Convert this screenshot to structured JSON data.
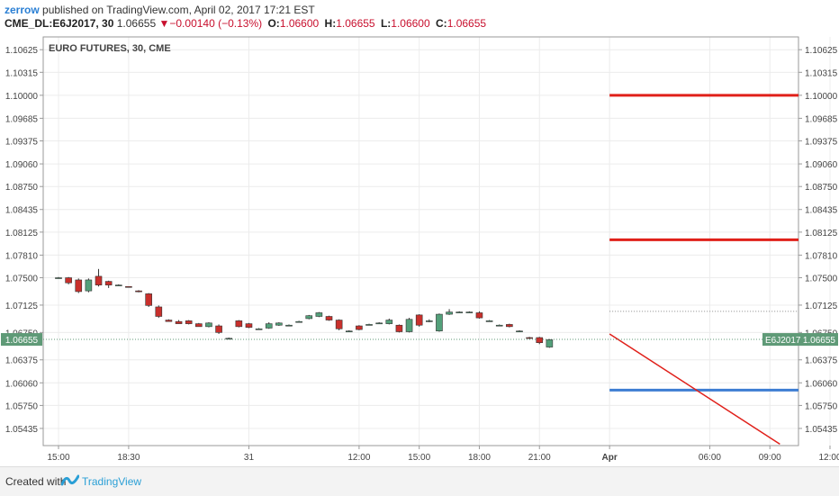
{
  "header": {
    "user": "zerrow",
    "published_text": "published on TradingView.com, April 02, 2017 17:21 EST",
    "symbol_line": "CME_DL:E6J2017, 30",
    "last": "1.06655",
    "change": "−0.00140 (−0.13%)",
    "open_label": "O:",
    "open": "1.06600",
    "high_label": "H:",
    "high": "1.06655",
    "low_label": "L:",
    "low": "1.06600",
    "close_label": "C:",
    "close": "1.06655"
  },
  "footer": {
    "created_with": "Created with",
    "brand": "TradingView"
  },
  "colors": {
    "up": "#53a07a",
    "down": "#c9302c",
    "level_red": "#e0201a",
    "level_blue": "#3d7dd2",
    "price_tag": "#5f9a77"
  },
  "chart_data": {
    "type": "candlestick",
    "title": "EURO FUTURES, 30, CME",
    "ylim": [
      1.052,
      1.108
    ],
    "y_ticks": [
      "1.10625",
      "1.10315",
      "1.10000",
      "1.09685",
      "1.09375",
      "1.09060",
      "1.08750",
      "1.08435",
      "1.08125",
      "1.07810",
      "1.07500",
      "1.07125",
      "1.06750",
      "1.06375",
      "1.06060",
      "1.05750",
      "1.05435"
    ],
    "x_ticks": [
      {
        "label": "15:00",
        "bar": 0
      },
      {
        "label": "18:30",
        "bar": 7
      },
      {
        "label": "31",
        "bar": 19
      },
      {
        "label": "12:00",
        "bar": 30
      },
      {
        "label": "15:00",
        "bar": 36
      },
      {
        "label": "18:00",
        "bar": 42
      },
      {
        "label": "21:00",
        "bar": 48
      },
      {
        "label": "Apr",
        "bar": 55
      },
      {
        "label": "06:00",
        "bar": 65
      },
      {
        "label": "09:00",
        "bar": 71
      },
      {
        "label": "12:00",
        "bar": 77
      }
    ],
    "candles": [
      {
        "o": 1.075,
        "h": 1.0751,
        "l": 1.0749,
        "c": 1.075
      },
      {
        "o": 1.075,
        "h": 1.0751,
        "l": 1.0741,
        "c": 1.0743
      },
      {
        "o": 1.0747,
        "h": 1.0749,
        "l": 1.0729,
        "c": 1.0731
      },
      {
        "o": 1.0732,
        "h": 1.0749,
        "l": 1.073,
        "c": 1.0747
      },
      {
        "o": 1.0752,
        "h": 1.0762,
        "l": 1.0738,
        "c": 1.074
      },
      {
        "o": 1.0745,
        "h": 1.0746,
        "l": 1.0736,
        "c": 1.074
      },
      {
        "o": 1.074,
        "h": 1.0741,
        "l": 1.0739,
        "c": 1.074
      },
      {
        "o": 1.0738,
        "h": 1.0738,
        "l": 1.0737,
        "c": 1.0737
      },
      {
        "o": 1.0732,
        "h": 1.0733,
        "l": 1.073,
        "c": 1.0731
      },
      {
        "o": 1.0728,
        "h": 1.0729,
        "l": 1.071,
        "c": 1.0712
      },
      {
        "o": 1.071,
        "h": 1.0712,
        "l": 1.0695,
        "c": 1.0697
      },
      {
        "o": 1.0692,
        "h": 1.0693,
        "l": 1.069,
        "c": 1.069
      },
      {
        "o": 1.069,
        "h": 1.0692,
        "l": 1.0687,
        "c": 1.0687
      },
      {
        "o": 1.0691,
        "h": 1.0692,
        "l": 1.0686,
        "c": 1.0687
      },
      {
        "o": 1.0687,
        "h": 1.0688,
        "l": 1.0683,
        "c": 1.0683
      },
      {
        "o": 1.0683,
        "h": 1.0689,
        "l": 1.0682,
        "c": 1.0688
      },
      {
        "o": 1.0684,
        "h": 1.0686,
        "l": 1.0673,
        "c": 1.0675
      },
      {
        "o": 1.0667,
        "h": 1.0668,
        "l": 1.0666,
        "c": 1.0667
      },
      {
        "o": 1.0691,
        "h": 1.0692,
        "l": 1.0682,
        "c": 1.0683
      },
      {
        "o": 1.0687,
        "h": 1.0688,
        "l": 1.0681,
        "c": 1.0682
      },
      {
        "o": 1.068,
        "h": 1.0681,
        "l": 1.0679,
        "c": 1.068
      },
      {
        "o": 1.0681,
        "h": 1.0689,
        "l": 1.068,
        "c": 1.0687
      },
      {
        "o": 1.0685,
        "h": 1.0689,
        "l": 1.0684,
        "c": 1.0688
      },
      {
        "o": 1.0685,
        "h": 1.0686,
        "l": 1.0684,
        "c": 1.0685
      },
      {
        "o": 1.069,
        "h": 1.0691,
        "l": 1.0689,
        "c": 1.069
      },
      {
        "o": 1.0694,
        "h": 1.0699,
        "l": 1.0693,
        "c": 1.0698
      },
      {
        "o": 1.0697,
        "h": 1.0703,
        "l": 1.0696,
        "c": 1.0702
      },
      {
        "o": 1.0697,
        "h": 1.0698,
        "l": 1.0691,
        "c": 1.0692
      },
      {
        "o": 1.0692,
        "h": 1.0693,
        "l": 1.0678,
        "c": 1.068
      },
      {
        "o": 1.0677,
        "h": 1.0678,
        "l": 1.0676,
        "c": 1.0677
      },
      {
        "o": 1.0684,
        "h": 1.0685,
        "l": 1.0678,
        "c": 1.0679
      },
      {
        "o": 1.0686,
        "h": 1.0687,
        "l": 1.0685,
        "c": 1.0686
      },
      {
        "o": 1.0688,
        "h": 1.0689,
        "l": 1.0687,
        "c": 1.0688
      },
      {
        "o": 1.0687,
        "h": 1.0694,
        "l": 1.0686,
        "c": 1.0692
      },
      {
        "o": 1.0685,
        "h": 1.0686,
        "l": 1.0675,
        "c": 1.0676
      },
      {
        "o": 1.0676,
        "h": 1.0695,
        "l": 1.0675,
        "c": 1.0693
      },
      {
        "o": 1.0699,
        "h": 1.07,
        "l": 1.0683,
        "c": 1.0685
      },
      {
        "o": 1.0691,
        "h": 1.0693,
        "l": 1.0689,
        "c": 1.0691
      },
      {
        "o": 1.0677,
        "h": 1.0701,
        "l": 1.0676,
        "c": 1.07
      },
      {
        "o": 1.07,
        "h": 1.0707,
        "l": 1.0699,
        "c": 1.0703
      },
      {
        "o": 1.0703,
        "h": 1.0704,
        "l": 1.0702,
        "c": 1.0703
      },
      {
        "o": 1.0703,
        "h": 1.0704,
        "l": 1.0702,
        "c": 1.0703
      },
      {
        "o": 1.0702,
        "h": 1.0704,
        "l": 1.0694,
        "c": 1.0695
      },
      {
        "o": 1.0691,
        "h": 1.0692,
        "l": 1.069,
        "c": 1.0691
      },
      {
        "o": 1.0685,
        "h": 1.0686,
        "l": 1.0684,
        "c": 1.0685
      },
      {
        "o": 1.0686,
        "h": 1.0687,
        "l": 1.0682,
        "c": 1.0683
      },
      {
        "o": 1.0677,
        "h": 1.0678,
        "l": 1.0676,
        "c": 1.0677
      },
      {
        "o": 1.0668,
        "h": 1.0669,
        "l": 1.0666,
        "c": 1.0667
      },
      {
        "o": 1.0668,
        "h": 1.0669,
        "l": 1.0659,
        "c": 1.0661
      },
      {
        "o": 1.0655,
        "h": 1.0666,
        "l": 1.0654,
        "c": 1.0665
      }
    ],
    "levels": [
      {
        "name": "target-high",
        "value": 1.1,
        "color": "#e0201a",
        "from_bar": 55
      },
      {
        "name": "target-mid",
        "value": 1.0802,
        "color": "#e0201a",
        "from_bar": 55
      },
      {
        "name": "support",
        "value": 1.0596,
        "color": "#3d7dd2",
        "from_bar": 55
      }
    ],
    "trend_line": {
      "x1_bar": 55,
      "y1": 1.0673,
      "x2_bar": 72,
      "y2": 1.0522,
      "color": "#e0201a"
    },
    "dotted_line": {
      "value": 1.0704,
      "from_bar": 55
    },
    "last_price": {
      "value": 1.06655,
      "label": "1.06655",
      "symbol": "E6J2017"
    }
  }
}
